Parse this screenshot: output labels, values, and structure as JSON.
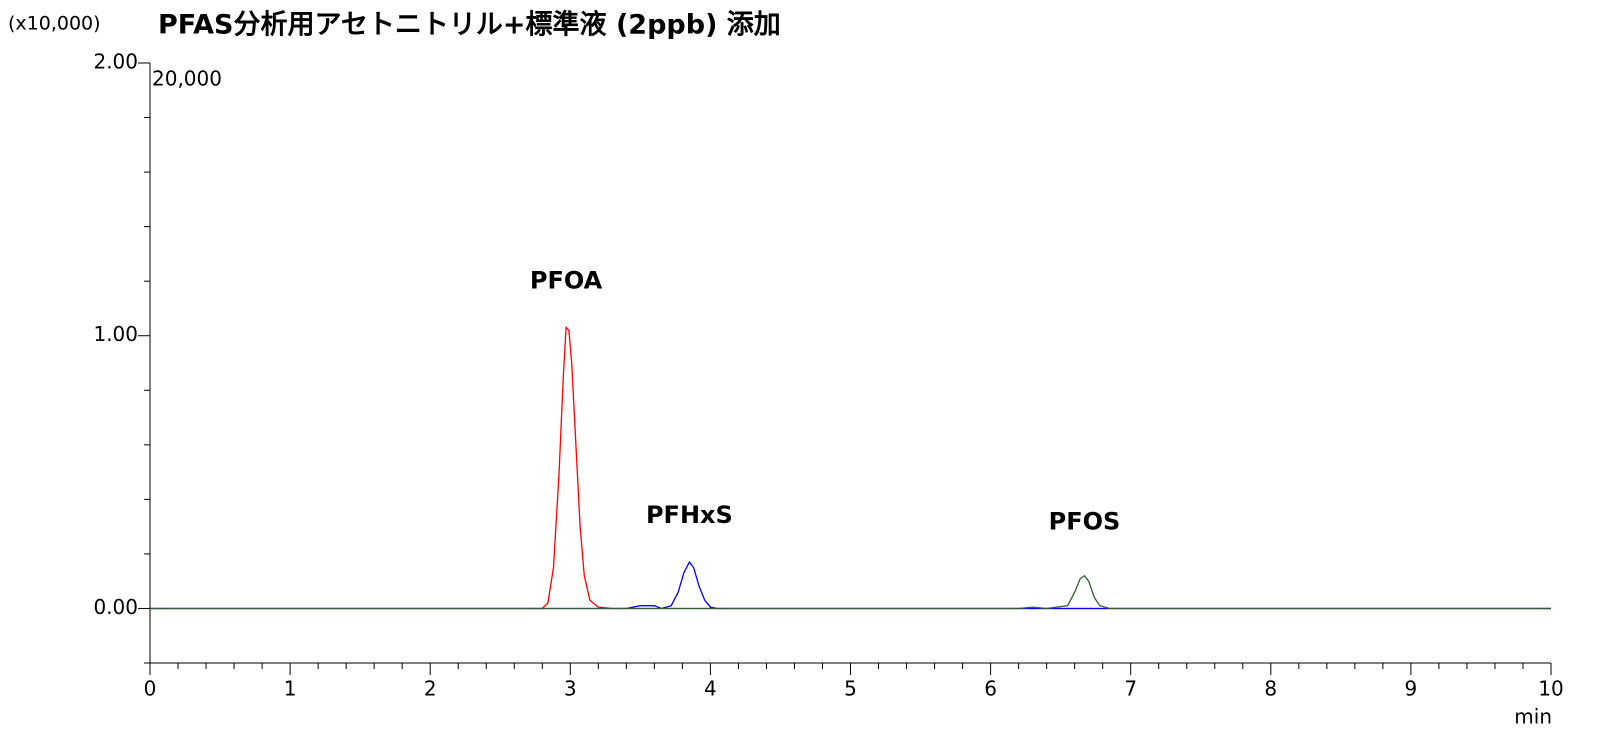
{
  "chart_data": {
    "type": "line",
    "title": "PFAS分析用アセトニトリル+標準液 (2ppb) 添加",
    "y_multiplier": "(x10,000)",
    "y_max_label": "20,000",
    "xlabel": "min",
    "xlim": [
      0,
      10
    ],
    "xticks": [
      0,
      1,
      2,
      3,
      4,
      5,
      6,
      7,
      8,
      9,
      10
    ],
    "x_minor_ticks": [
      0.2,
      0.4,
      0.6,
      0.8,
      1.2,
      1.4,
      1.6,
      1.8,
      2.2,
      2.4,
      2.6,
      2.8,
      3.2,
      3.4,
      3.6,
      3.8,
      4.2,
      4.4,
      4.6,
      4.8,
      5.2,
      5.4,
      5.6,
      5.8,
      6.2,
      6.4,
      6.6,
      6.8,
      7.2,
      7.4,
      7.6,
      7.8,
      8.2,
      8.4,
      8.6,
      8.8,
      9.2,
      9.4,
      9.6,
      9.8
    ],
    "ylim": [
      -0.2,
      2.0
    ],
    "yticks": [
      {
        "value": 0,
        "label": "0.00"
      },
      {
        "value": 1,
        "label": "1.00"
      },
      {
        "value": 2,
        "label": "2.00"
      }
    ],
    "y_minor_ticks": [
      -0.2,
      0.2,
      0.4,
      0.6,
      0.8,
      1.2,
      1.4,
      1.6,
      1.8
    ],
    "series": [
      {
        "name": "PFOA",
        "color": "#ff0000",
        "x": [
          0,
          2.8,
          2.84,
          2.88,
          2.92,
          2.95,
          2.97,
          2.99,
          3.01,
          3.04,
          3.07,
          3.1,
          3.14,
          3.2,
          3.3,
          10
        ],
        "values": [
          0,
          0,
          0.02,
          0.15,
          0.5,
          0.85,
          1.03,
          1.02,
          0.9,
          0.6,
          0.3,
          0.12,
          0.03,
          0.005,
          0,
          0
        ]
      },
      {
        "name": "PFHxS",
        "color": "#0000ff",
        "x": [
          0,
          3.4,
          3.5,
          3.6,
          3.65,
          3.72,
          3.77,
          3.81,
          3.85,
          3.88,
          3.92,
          3.96,
          4.0,
          4.05,
          10
        ],
        "values": [
          0,
          0,
          0.01,
          0.01,
          0,
          0.01,
          0.06,
          0.13,
          0.17,
          0.15,
          0.08,
          0.03,
          0.005,
          0,
          0
        ]
      },
      {
        "name": "PFOS",
        "color": "#2f5f2f",
        "x": [
          0,
          6.2,
          6.3,
          6.4,
          6.55,
          6.6,
          6.64,
          6.67,
          6.7,
          6.74,
          6.78,
          6.85,
          10
        ],
        "values": [
          0,
          0,
          0.005,
          0,
          0.01,
          0.06,
          0.11,
          0.12,
          0.1,
          0.04,
          0.01,
          0,
          0
        ]
      }
    ]
  }
}
